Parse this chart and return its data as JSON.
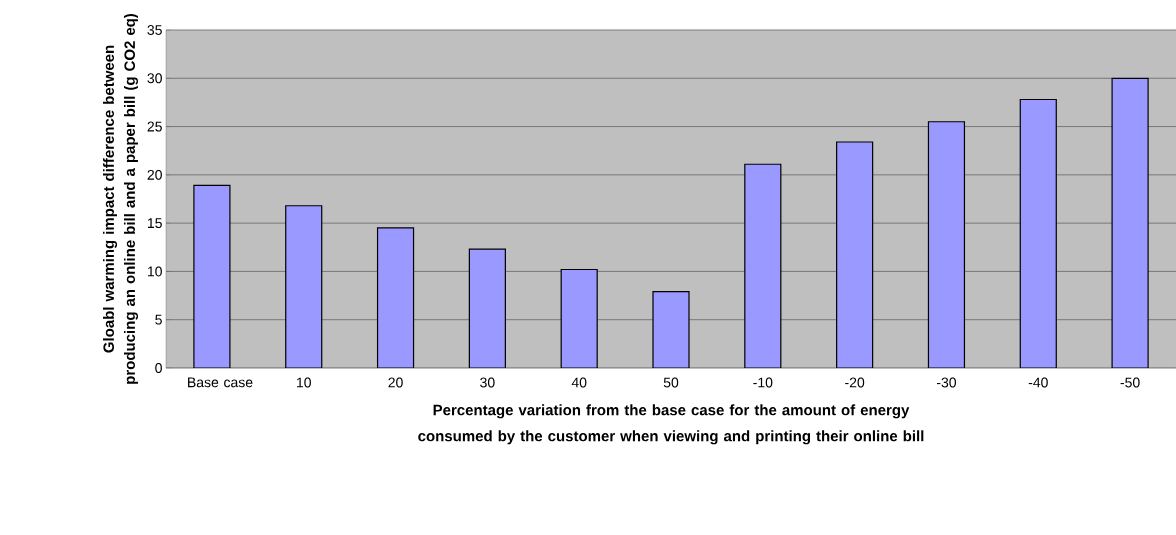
{
  "chart_data": {
    "type": "bar",
    "xlabel": "Percentage variation from the base case for the amount of energy consumed by the customer when viewing and printing their  online bill",
    "ylabel": "Gloabl warming impact difference between producing an online bill and a paper bill (g CO2 eq)",
    "categories": [
      "Base case",
      "10",
      "20",
      "30",
      "40",
      "50",
      "-10",
      "-20",
      "-30",
      "-40",
      "-50"
    ],
    "values": [
      18.9,
      16.8,
      14.5,
      12.3,
      10.2,
      7.9,
      21.1,
      23.4,
      25.5,
      27.8,
      30.0
    ],
    "color": "#9999ff",
    "ylim": [
      0,
      35
    ],
    "yticks": [
      0,
      5,
      10,
      15,
      20,
      25,
      30,
      35
    ],
    "grid": "y"
  }
}
